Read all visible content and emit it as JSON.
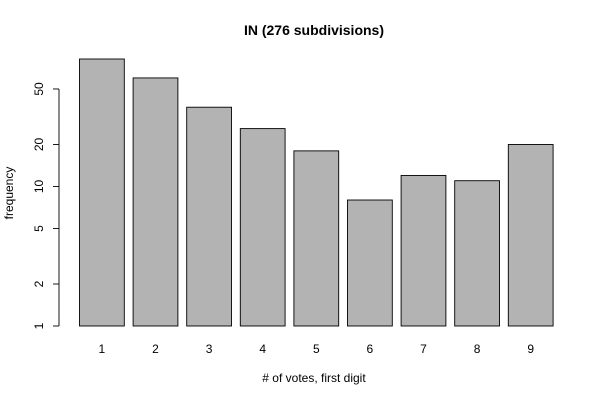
{
  "chart_data": {
    "type": "bar",
    "title": "IN (276 subdivisions)",
    "xlabel": "# of votes, first digit",
    "ylabel": "frequency",
    "categories": [
      "1",
      "2",
      "3",
      "4",
      "5",
      "6",
      "7",
      "8",
      "9"
    ],
    "values": [
      82,
      60,
      37,
      26,
      18,
      8,
      12,
      11,
      20
    ],
    "y_scale": "log",
    "ylim": [
      1,
      82
    ],
    "y_ticks": [
      1,
      2,
      5,
      10,
      20,
      50
    ],
    "y_tick_labels": [
      "1",
      "2",
      "5",
      "10",
      "20",
      "50"
    ],
    "grid": false,
    "legend": "none",
    "colors": {
      "bar_fill": "#b3b3b3",
      "bar_stroke": "#000000"
    }
  }
}
